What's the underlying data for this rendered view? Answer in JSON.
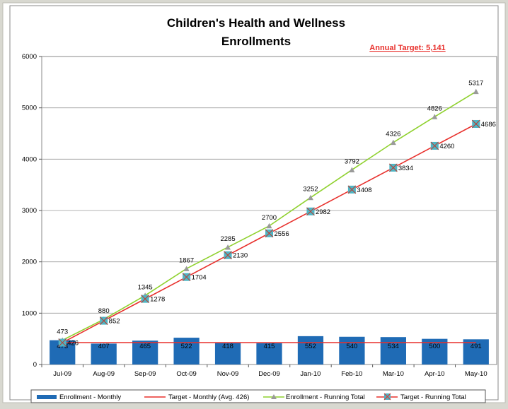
{
  "chart_data": {
    "type": "bar+line",
    "title": "Children's Health and Wellness",
    "subtitle": "Enrollments",
    "annotation": "Annual Target:  5,141",
    "categories": [
      "Jul-09",
      "Aug-09",
      "Sep-09",
      "Oct-09",
      "Nov-09",
      "Dec-09",
      "Jan-10",
      "Feb-10",
      "Mar-10",
      "Apr-10",
      "May-10"
    ],
    "ylim": [
      0,
      6000
    ],
    "yticks": [
      "0",
      "1000",
      "2000",
      "3000",
      "4000",
      "5000",
      "6000"
    ],
    "grid": true,
    "legend_position": "bottom",
    "series": [
      {
        "name": "Enrollment - Monthly",
        "type": "bar",
        "color": "#1f6bb5",
        "values": [
          473,
          407,
          465,
          522,
          418,
          415,
          552,
          540,
          534,
          500,
          491
        ]
      },
      {
        "name": "Target - Monthly (Avg. 426)",
        "type": "line",
        "color": "#e8302c",
        "values": [
          426,
          426,
          426,
          426,
          426,
          426,
          426,
          426,
          426,
          426,
          426
        ]
      },
      {
        "name": "Enrollment - Running Total",
        "type": "line",
        "marker": "triangle",
        "color": "#8fd12e",
        "marker_color": "#9a9a9a",
        "values": [
          473,
          880,
          1345,
          1867,
          2285,
          2700,
          3252,
          3792,
          4326,
          4826,
          5317
        ]
      },
      {
        "name": "Target - Running Total",
        "type": "line",
        "marker": "square-x",
        "color": "#e8302c",
        "marker_color": "#4fb5c4",
        "values": [
          426,
          852,
          1278,
          1704,
          2130,
          2556,
          2982,
          3408,
          3834,
          4260,
          4686
        ]
      }
    ]
  }
}
